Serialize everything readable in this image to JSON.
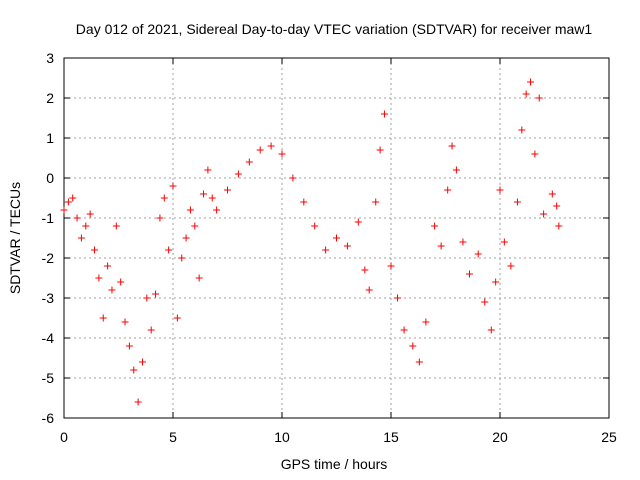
{
  "chart_data": {
    "type": "scatter",
    "title": "Day 012 of 2021, Sidereal Day-to-day VTEC variation (SDTVAR) for receiver maw1",
    "xlabel": "GPS time / hours",
    "ylabel": "SDTVAR / TECUs",
    "xlim": [
      0,
      25
    ],
    "ylim": [
      -6,
      3
    ],
    "x_ticks": [
      0,
      5,
      10,
      15,
      20,
      25
    ],
    "x_tick_labels": [
      "0",
      "5",
      "10",
      "15",
      "20",
      "25"
    ],
    "y_ticks": [
      -6,
      -5,
      -4,
      -3,
      -2,
      -1,
      0,
      1,
      2,
      3
    ],
    "y_tick_labels": [
      "-6",
      "-5",
      "-4",
      "-3",
      "-2",
      "-1",
      "0",
      "1",
      "2",
      "3"
    ],
    "grid": true,
    "marker": "+",
    "color": "#ff0000",
    "series": [
      {
        "name": "SDTVAR",
        "points": [
          [
            0.0,
            -0.8
          ],
          [
            0.2,
            -0.6
          ],
          [
            0.4,
            -0.5
          ],
          [
            0.6,
            -1.0
          ],
          [
            0.8,
            -1.5
          ],
          [
            1.0,
            -1.2
          ],
          [
            1.2,
            -0.9
          ],
          [
            1.4,
            -1.8
          ],
          [
            1.6,
            -2.5
          ],
          [
            1.8,
            -3.5
          ],
          [
            2.0,
            -2.2
          ],
          [
            2.2,
            -2.8
          ],
          [
            2.4,
            -1.2
          ],
          [
            2.6,
            -2.6
          ],
          [
            2.8,
            -3.6
          ],
          [
            3.0,
            -4.2
          ],
          [
            3.2,
            -4.8
          ],
          [
            3.4,
            -5.6
          ],
          [
            3.6,
            -4.6
          ],
          [
            3.8,
            -3.0
          ],
          [
            4.0,
            -3.8
          ],
          [
            4.2,
            -2.9
          ],
          [
            4.4,
            -1.0
          ],
          [
            4.6,
            -0.5
          ],
          [
            4.8,
            -1.8
          ],
          [
            5.0,
            -0.2
          ],
          [
            5.2,
            -3.5
          ],
          [
            5.4,
            -2.0
          ],
          [
            5.6,
            -1.5
          ],
          [
            5.8,
            -0.8
          ],
          [
            6.0,
            -1.2
          ],
          [
            6.2,
            -2.5
          ],
          [
            6.4,
            -0.4
          ],
          [
            6.6,
            0.2
          ],
          [
            6.8,
            -0.5
          ],
          [
            7.0,
            -0.8
          ],
          [
            7.5,
            -0.3
          ],
          [
            8.0,
            0.1
          ],
          [
            8.5,
            0.4
          ],
          [
            9.0,
            0.7
          ],
          [
            9.5,
            0.8
          ],
          [
            10.0,
            0.6
          ],
          [
            10.5,
            0.0
          ],
          [
            11.0,
            -0.6
          ],
          [
            11.5,
            -1.2
          ],
          [
            12.0,
            -1.8
          ],
          [
            12.5,
            -1.5
          ],
          [
            13.0,
            -1.7
          ],
          [
            13.5,
            -1.1
          ],
          [
            13.8,
            -2.3
          ],
          [
            14.0,
            -2.8
          ],
          [
            14.3,
            -0.6
          ],
          [
            14.5,
            0.7
          ],
          [
            14.7,
            1.6
          ],
          [
            15.0,
            -2.2
          ],
          [
            15.3,
            -3.0
          ],
          [
            15.6,
            -3.8
          ],
          [
            16.0,
            -4.2
          ],
          [
            16.3,
            -4.6
          ],
          [
            16.6,
            -3.6
          ],
          [
            17.0,
            -1.2
          ],
          [
            17.3,
            -1.7
          ],
          [
            17.6,
            -0.3
          ],
          [
            17.8,
            0.8
          ],
          [
            18.0,
            0.2
          ],
          [
            18.3,
            -1.6
          ],
          [
            18.6,
            -2.4
          ],
          [
            19.0,
            -1.9
          ],
          [
            19.3,
            -3.1
          ],
          [
            19.6,
            -3.8
          ],
          [
            19.8,
            -2.6
          ],
          [
            20.0,
            -0.3
          ],
          [
            20.2,
            -1.6
          ],
          [
            20.5,
            -2.2
          ],
          [
            20.8,
            -0.6
          ],
          [
            21.0,
            1.2
          ],
          [
            21.2,
            2.1
          ],
          [
            21.4,
            2.4
          ],
          [
            21.6,
            0.6
          ],
          [
            21.8,
            2.0
          ],
          [
            22.0,
            -0.9
          ],
          [
            22.4,
            -0.4
          ],
          [
            22.6,
            -0.7
          ],
          [
            22.7,
            -1.2
          ]
        ]
      }
    ]
  }
}
